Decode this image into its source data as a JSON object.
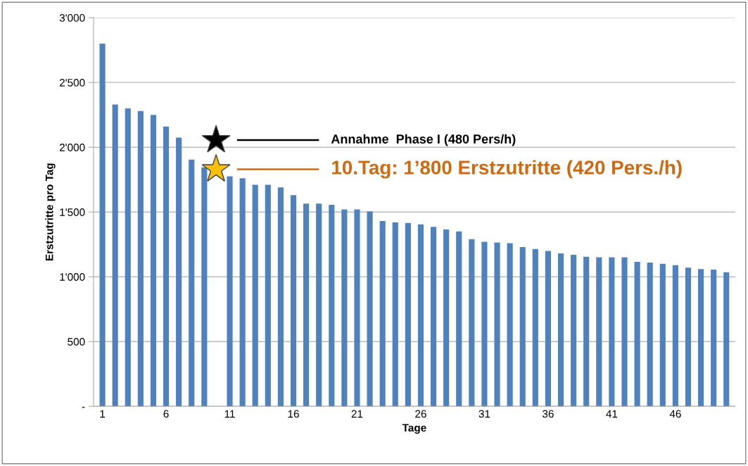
{
  "chart_data": {
    "type": "bar",
    "xlabel": "Tage",
    "ylabel": "Erstzutritte pro Tag",
    "categories": [
      "1",
      null,
      null,
      null,
      null,
      "6",
      null,
      null,
      null,
      null,
      "11",
      null,
      null,
      null,
      null,
      "16",
      null,
      null,
      null,
      null,
      "21",
      null,
      null,
      null,
      null,
      "26",
      null,
      null,
      null,
      null,
      "31",
      null,
      null,
      null,
      null,
      "36",
      null,
      null,
      null,
      null,
      "41",
      null,
      null,
      null,
      null,
      "46",
      null,
      null,
      null,
      null
    ],
    "values": [
      2800,
      2330,
      2300,
      2280,
      2250,
      2160,
      2075,
      1905,
      1845,
      null,
      1775,
      1760,
      1710,
      1710,
      1690,
      1630,
      1565,
      1565,
      1555,
      1520,
      1520,
      1505,
      1430,
      1420,
      1415,
      1405,
      1385,
      1365,
      1350,
      1290,
      1270,
      1265,
      1260,
      1230,
      1215,
      1200,
      1180,
      1170,
      1155,
      1150,
      1150,
      1150,
      1115,
      1110,
      1100,
      1090,
      1070,
      1060,
      1055,
      1035
    ],
    "color": "#4f81bd",
    "ylim": [
      0,
      3000
    ],
    "yticks": [
      {
        "value": 0,
        "label": "-"
      },
      500,
      {
        "value": 1000,
        "label": "1'000"
      },
      {
        "value": 1500,
        "label": "1'500"
      },
      {
        "value": 2000,
        "label": "2'000"
      },
      {
        "value": 2500,
        "label": "2'500"
      },
      {
        "value": 3000,
        "label": "3'000"
      }
    ],
    "grid": "y",
    "annotations": [
      "Annahme  Phase I (480 Pers/h)",
      "10.Tag: 1’800 Erstzutritte (420 Pers./h)"
    ]
  }
}
